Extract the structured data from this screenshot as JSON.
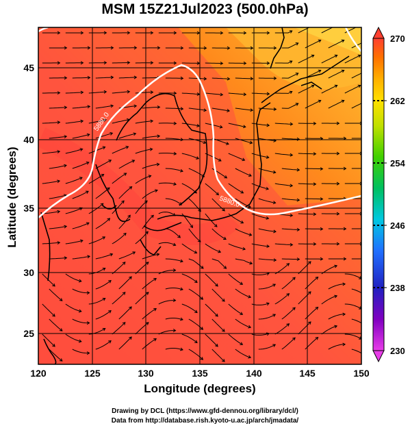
{
  "title": "MSM 15Z21Jul2023 (500.0hPa)",
  "axes": {
    "xlabel": "Longitude (degrees)",
    "ylabel": "Latitude  (degrees)",
    "x_ticks": [
      "120",
      "125",
      "130",
      "135",
      "140",
      "145",
      "150"
    ],
    "y_ticks": [
      "25",
      "30",
      "35",
      "40",
      "45"
    ]
  },
  "colorbar": {
    "ticks": [
      "270",
      "262",
      "254",
      "246",
      "238",
      "230"
    ],
    "range": [
      230,
      270
    ],
    "colors": [
      "#e040e0",
      "#8000c0",
      "#2020c0",
      "#2070ff",
      "#00c8e0",
      "#00c060",
      "#40d000",
      "#c0e000",
      "#ffe000",
      "#ffb000",
      "#ff7000",
      "#ff4030"
    ]
  },
  "contours": {
    "label_5880": "5880.0",
    "label_5900": "5900.0"
  },
  "credits": {
    "line1": "Drawing by DCL (https://www.gfd-dennou.org/library/dcl/)",
    "line2": "Data from http://database.rish.kyoto-u.ac.jp/arch/jmadata/"
  },
  "colors": {
    "warm": "#ff5a3c",
    "orange": "#ff8c1e",
    "yellow": "#ffb428",
    "contour": "#ffffff"
  }
}
